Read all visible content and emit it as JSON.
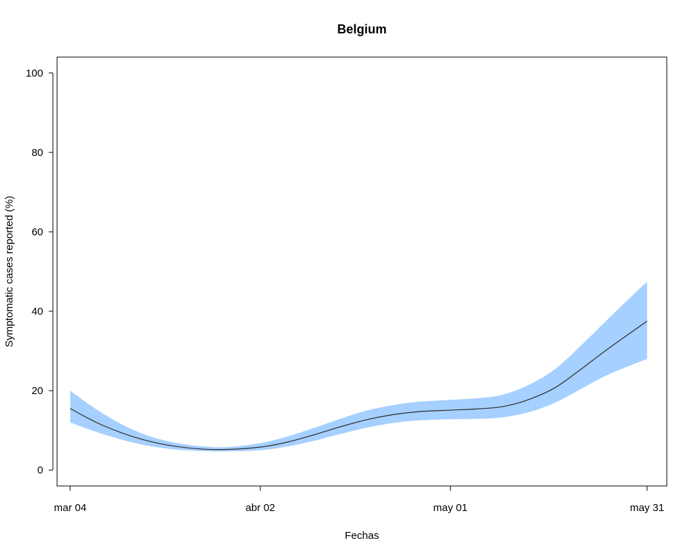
{
  "chart_data": {
    "type": "area",
    "title": "Belgium",
    "xlabel": "Fechas",
    "ylabel": "Symptomatic cases reported (%)",
    "x_range": [
      "2020-03-04",
      "2020-05-31"
    ],
    "xlim": [
      "2020-03-02",
      "2020-06-03"
    ],
    "ylim": [
      -4,
      104
    ],
    "x_ticks": [
      {
        "date": "2020-03-04",
        "label": "mar 04"
      },
      {
        "date": "2020-04-02",
        "label": "abr 02"
      },
      {
        "date": "2020-05-01",
        "label": "may 01"
      },
      {
        "date": "2020-05-31",
        "label": "may 31"
      }
    ],
    "y_ticks": [
      0,
      20,
      40,
      60,
      80,
      100
    ],
    "grid": false,
    "band_color": "#a6d0ff",
    "line_color": "#2b2b2b",
    "series": [
      {
        "x": [
          "2020-03-04",
          "2020-03-08",
          "2020-03-12",
          "2020-03-16",
          "2020-03-20",
          "2020-03-24",
          "2020-03-28",
          "2020-04-02",
          "2020-04-06",
          "2020-04-10",
          "2020-04-14",
          "2020-04-18",
          "2020-04-22",
          "2020-04-26",
          "2020-05-01",
          "2020-05-05",
          "2020-05-09",
          "2020-05-13",
          "2020-05-17",
          "2020-05-21",
          "2020-05-25",
          "2020-05-31"
        ],
        "y": [
          15.5,
          12.0,
          9.3,
          7.3,
          6.0,
          5.3,
          5.2,
          5.8,
          7.0,
          8.8,
          10.8,
          12.6,
          13.9,
          14.7,
          15.1,
          15.4,
          16.0,
          17.8,
          20.8,
          25.5,
          30.5,
          37.5
        ],
        "lower": [
          12.0,
          9.6,
          7.6,
          6.1,
          5.2,
          4.8,
          4.7,
          5.0,
          5.9,
          7.3,
          9.0,
          10.6,
          11.8,
          12.5,
          12.8,
          12.9,
          13.3,
          14.6,
          17.0,
          20.5,
          24.0,
          28.0
        ],
        "upper": [
          20.0,
          15.3,
          11.4,
          8.6,
          6.9,
          6.0,
          5.8,
          6.8,
          8.4,
          10.5,
          12.8,
          14.9,
          16.3,
          17.2,
          17.7,
          18.1,
          19.0,
          21.5,
          25.5,
          31.5,
          38.0,
          47.5
        ]
      }
    ]
  }
}
